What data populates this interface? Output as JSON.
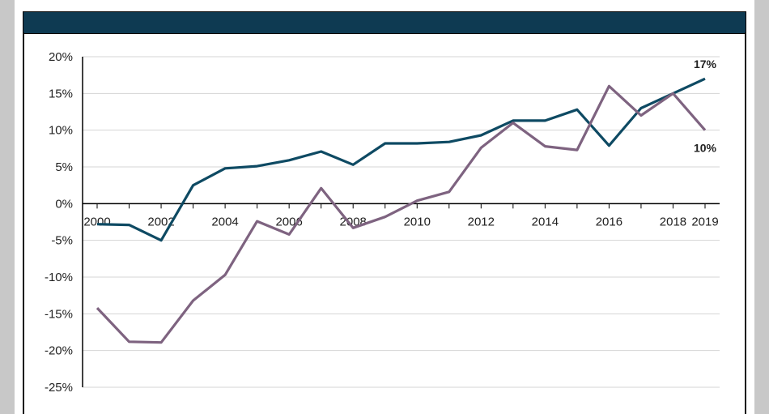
{
  "chart_data": {
    "type": "line",
    "title": "",
    "xlabel": "",
    "ylabel": "",
    "x": [
      2000,
      2001,
      2002,
      2003,
      2004,
      2005,
      2006,
      2007,
      2008,
      2009,
      2010,
      2011,
      2012,
      2013,
      2014,
      2015,
      2016,
      2017,
      2018,
      2019
    ],
    "x_tick_labels": [
      "2000",
      "2002",
      "2004",
      "2006",
      "2008",
      "2010",
      "2012",
      "2014",
      "2016",
      "2018",
      "2019"
    ],
    "y_tick_labels": [
      "20%",
      "15%",
      "10%",
      "5%",
      "0%",
      "-5%",
      "-10%",
      "-15%",
      "-20%",
      "-25%"
    ],
    "ylim": [
      -25,
      20
    ],
    "grid": true,
    "series": [
      {
        "color": "#0e4a63",
        "values": [
          -2.8,
          -2.9,
          -5,
          2.5,
          4.8,
          5.1,
          5.9,
          7.1,
          5.3,
          8.2,
          8.2,
          8.4,
          9.3,
          11.3,
          11.3,
          12.8,
          7.9,
          13,
          15,
          17
        ],
        "end_label": "17%"
      },
      {
        "color": "#7e6380",
        "values": [
          -14.2,
          -18.8,
          -18.9,
          -13.2,
          -9.7,
          -2.4,
          -4.2,
          2.1,
          -3.3,
          -1.8,
          0.4,
          1.6,
          7.6,
          11,
          7.8,
          7.3,
          16,
          12,
          15,
          10
        ],
        "end_label": "10%"
      }
    ]
  }
}
